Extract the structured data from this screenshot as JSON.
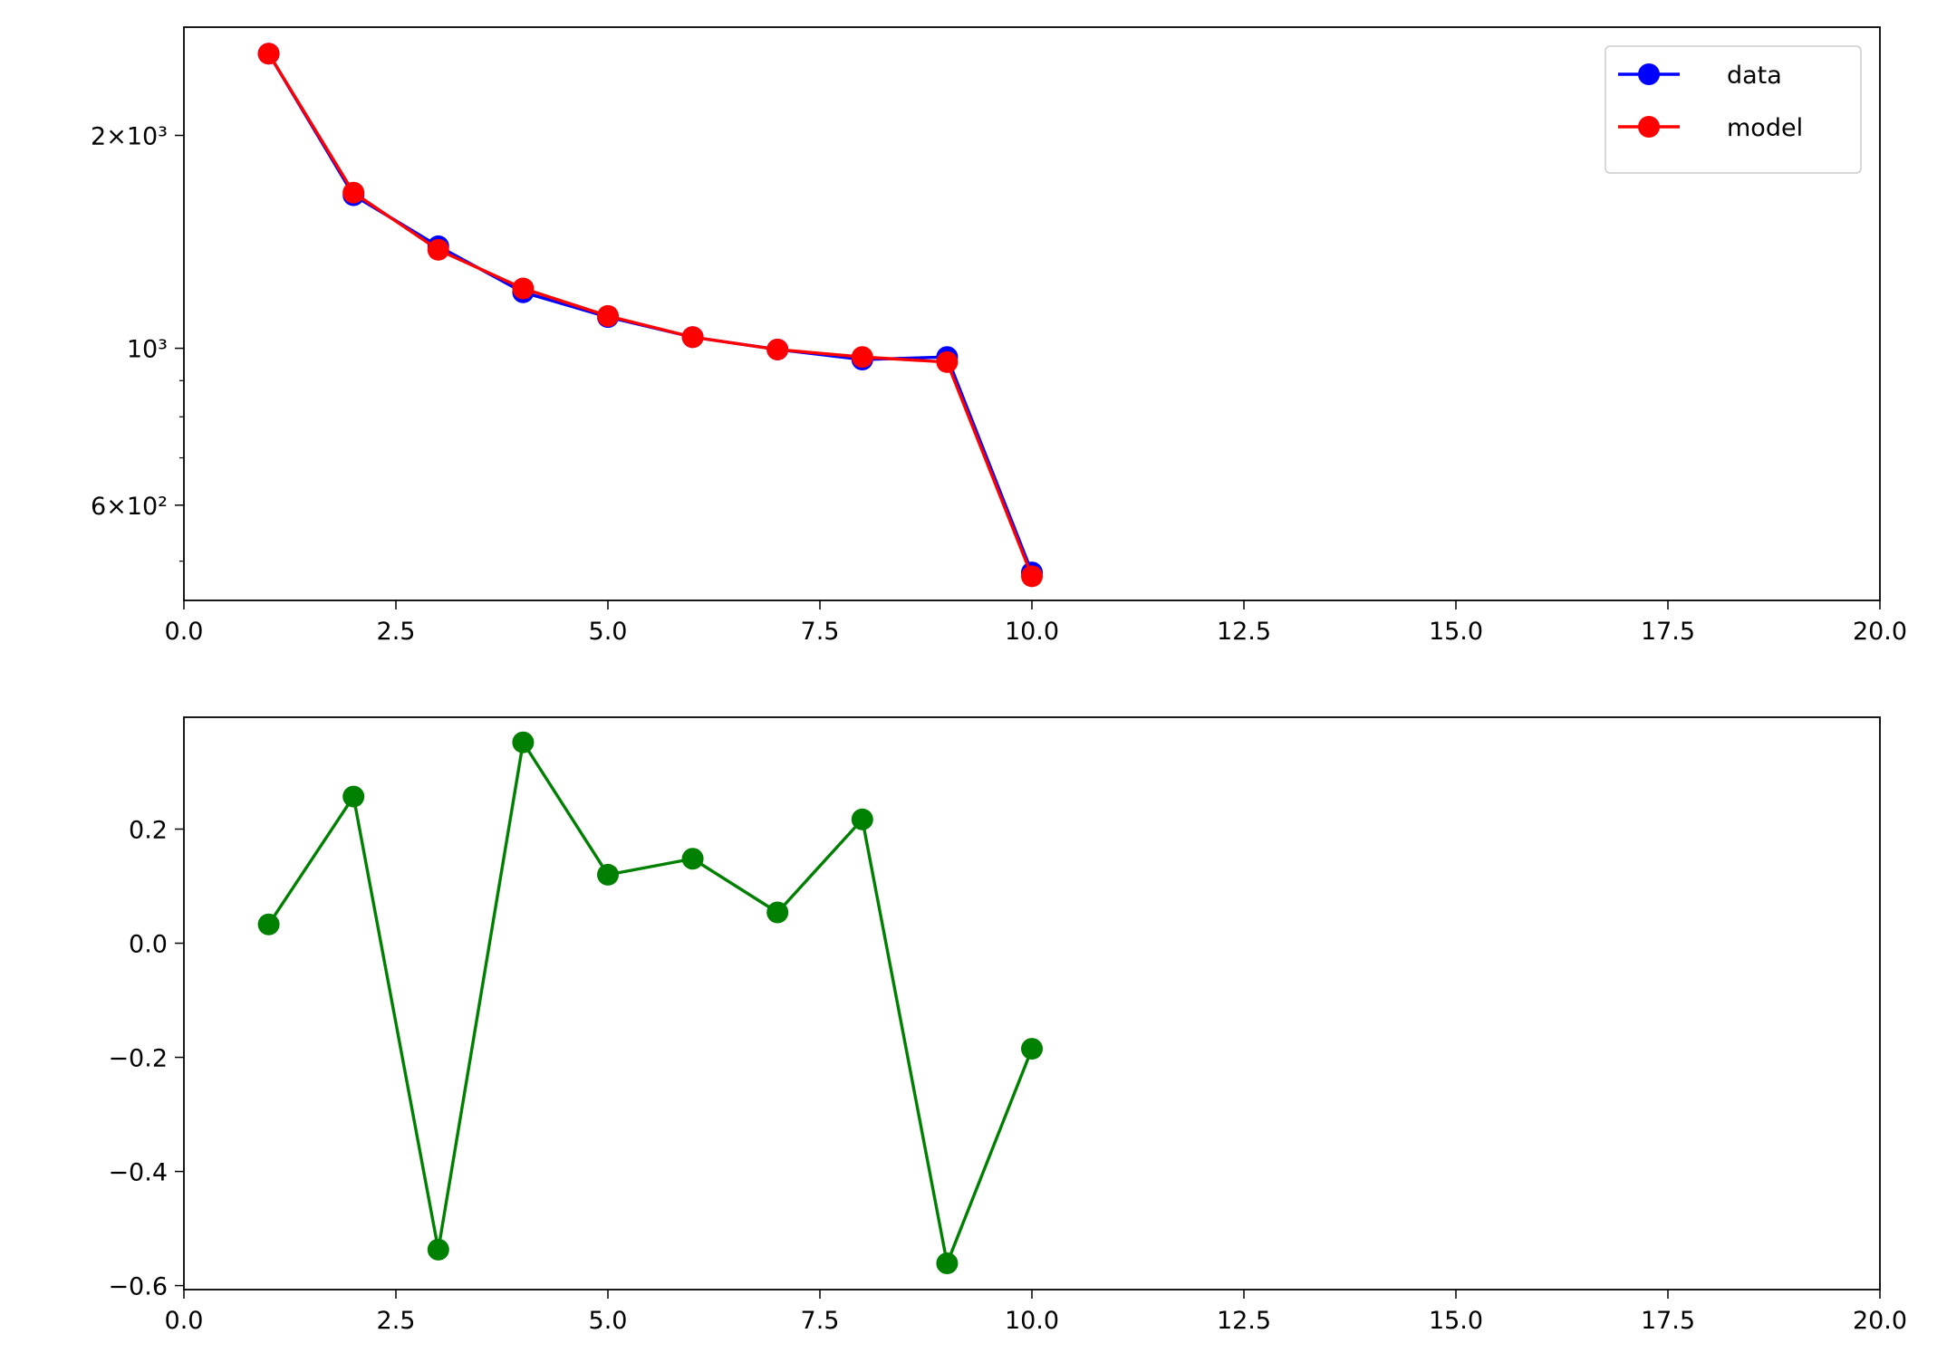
{
  "chart_data": [
    {
      "type": "line",
      "log_y": true,
      "legend": "upper right",
      "x": [
        1,
        2,
        3,
        4,
        5,
        6,
        7,
        8,
        9,
        10
      ],
      "series": [
        {
          "name": "data",
          "color": "#0000ff",
          "values": [
            2610,
            1646,
            1394,
            1200,
            1107,
            1037,
            996,
            964,
            972,
            482
          ]
        },
        {
          "name": "model",
          "color": "#ff0000",
          "values": [
            2610,
            1660,
            1378,
            1215,
            1111,
            1037,
            996,
            972,
            956,
            476
          ]
        }
      ],
      "xlim": [
        0,
        20
      ],
      "xticks": [
        {
          "value": 0,
          "label": "0.0"
        },
        2.5,
        {
          "value": 5,
          "label": "5.0"
        },
        7.5,
        {
          "value": 10,
          "label": "10.0"
        },
        12.5,
        {
          "value": 15,
          "label": "15.0"
        },
        17.5,
        {
          "value": 20,
          "label": "20.0"
        }
      ],
      "ylim": [
        440,
        2845
      ],
      "yticks": [
        {
          "value": 600,
          "label": "6×10²"
        },
        {
          "value": 1000,
          "label": "10³"
        },
        {
          "value": 2000,
          "label": "2×10³"
        }
      ],
      "yminorticks": [
        500,
        700,
        800,
        900
      ]
    },
    {
      "type": "line",
      "x": [
        1,
        2,
        3,
        4,
        5,
        6,
        7,
        8,
        9,
        10
      ],
      "series": [
        {
          "color": "#008000",
          "values": [
            0.033,
            0.257,
            -0.537,
            0.352,
            0.12,
            0.148,
            0.054,
            0.217,
            -0.561,
            -0.185
          ]
        }
      ],
      "xlim": [
        0,
        20
      ],
      "xticks": [
        {
          "value": 0,
          "label": "0.0"
        },
        2.5,
        {
          "value": 5,
          "label": "5.0"
        },
        7.5,
        {
          "value": 10,
          "label": "10.0"
        },
        12.5,
        {
          "value": 15,
          "label": "15.0"
        },
        17.5,
        {
          "value": 20,
          "label": "20.0"
        }
      ],
      "ylim": [
        -0.607,
        0.396
      ],
      "yticks": [
        {
          "value": -0.6,
          "label": "−0.6"
        },
        {
          "value": -0.4,
          "label": "−0.4"
        },
        {
          "value": -0.2,
          "label": "−0.2"
        },
        {
          "value": 0,
          "label": "0.0"
        },
        0.2
      ]
    }
  ]
}
